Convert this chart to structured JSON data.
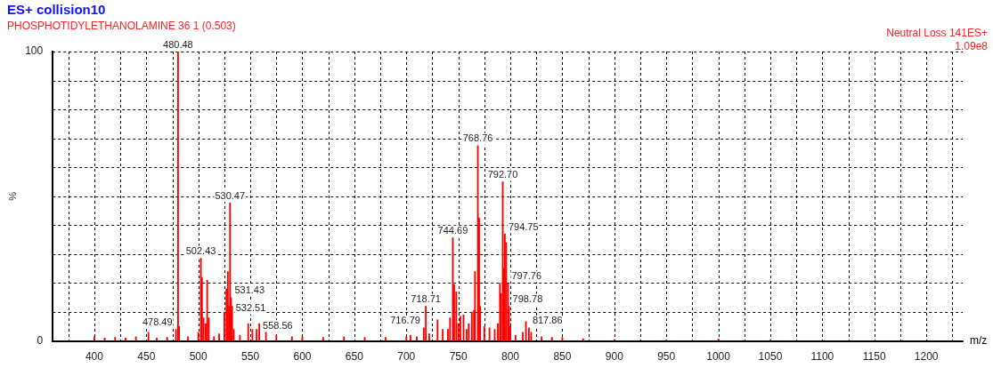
{
  "chart_data": {
    "type": "bar",
    "title": "ES+ collision10",
    "subtitle": "PHOSPHOTIDYLETHANOLAMINE 36 1 (0.503)",
    "xlabel": "m/z",
    "ylabel": "%",
    "annotations": [
      "Neutral Loss 141ES+",
      "1.09e8",
      {
        "text": "480.48",
        "x": 480.48,
        "y": 100
      },
      {
        "text": "478.49",
        "x": 478.49,
        "y": 4
      },
      {
        "text": "502.43",
        "x": 502.43,
        "y": 28.6
      },
      {
        "text": "530.47",
        "x": 530.47,
        "y": 47.7
      },
      {
        "text": "531.43",
        "x": 531.43,
        "y": 15
      },
      {
        "text": "532.51",
        "x": 532.51,
        "y": 12
      },
      {
        "text": "558.56",
        "x": 558.56,
        "y": 6
      },
      {
        "text": "716.79",
        "x": 716.79,
        "y": 4.5
      },
      {
        "text": "718.71",
        "x": 718.71,
        "y": 12
      },
      {
        "text": "744.69",
        "x": 744.69,
        "y": 35.6
      },
      {
        "text": "768.76",
        "x": 768.76,
        "y": 67.5
      },
      {
        "text": "792.70",
        "x": 792.7,
        "y": 55
      },
      {
        "text": "794.75",
        "x": 794.75,
        "y": 37
      },
      {
        "text": "797.76",
        "x": 797.76,
        "y": 20
      },
      {
        "text": "798.78",
        "x": 798.78,
        "y": 12
      },
      {
        "text": "817.86",
        "x": 817.86,
        "y": 4.5
      }
    ],
    "series": [
      {
        "color": "#ff0000",
        "x": [
          400,
          410,
          420,
          430,
          440,
          452,
          460,
          470,
          478.49,
          480.48,
          481.5,
          490,
          500,
          502.43,
          503.5,
          505,
          507,
          508.5,
          510,
          515,
          520,
          525,
          527,
          528.4,
          529.5,
          530.47,
          531.43,
          532.51,
          534,
          540,
          548,
          552,
          556,
          558.56,
          565,
          575,
          590,
          600,
          620,
          640,
          660,
          680,
          700,
          704,
          710,
          716.79,
          718.71,
          722,
          730,
          735,
          740,
          742,
          744.69,
          746,
          748,
          750,
          752,
          755,
          758,
          760,
          763,
          765,
          766,
          768.76,
          770,
          771,
          775,
          780,
          785,
          788,
          790,
          791,
          792.7,
          793.7,
          794.75,
          796,
          797.76,
          798.78,
          800,
          805,
          812,
          815,
          817.86,
          820,
          830,
          840,
          850,
          870,
          900,
          950,
          1000,
          1050
        ],
        "values": [
          1.5,
          1,
          1.2,
          1,
          1.5,
          3,
          1,
          1.2,
          4,
          100,
          5,
          1.5,
          3,
          28.6,
          22,
          8,
          6,
          21,
          8,
          1.5,
          2.5,
          10,
          18,
          24,
          12,
          47.7,
          15,
          12,
          4,
          2,
          6,
          4,
          4,
          6,
          3,
          2,
          1.5,
          1.5,
          1.2,
          1.5,
          1.2,
          1.2,
          1.5,
          2,
          1.5,
          4.5,
          12,
          2.5,
          7.3,
          4,
          4,
          8,
          35.6,
          19.5,
          17,
          6,
          8.5,
          9,
          4,
          6,
          10,
          10.6,
          24,
          67.5,
          42.5,
          12,
          5,
          4.5,
          4,
          6,
          20,
          16.4,
          55,
          25,
          37,
          34,
          20,
          12,
          5,
          2,
          3,
          6.7,
          4.5,
          3,
          1.5,
          1.2,
          1.2,
          0.8,
          0.5,
          0.4,
          0.6,
          0.3
        ]
      }
    ],
    "xlim": [
      360,
      1235
    ],
    "xticks": [
      {
        "value": 375,
        "label": null
      },
      400,
      {
        "value": 425,
        "label": null
      },
      450,
      {
        "value": 475,
        "label": null
      },
      500,
      {
        "value": 525,
        "label": null
      },
      550,
      {
        "value": 575,
        "label": null
      },
      600,
      {
        "value": 625,
        "label": null
      },
      650,
      {
        "value": 675,
        "label": null
      },
      700,
      {
        "value": 725,
        "label": null
      },
      750,
      {
        "value": 775,
        "label": null
      },
      800,
      {
        "value": 825,
        "label": null
      },
      850,
      {
        "value": 875,
        "label": null
      },
      900,
      {
        "value": 925,
        "label": null
      },
      950,
      {
        "value": 975,
        "label": null
      },
      1000,
      {
        "value": 1025,
        "label": null
      },
      1050,
      {
        "value": 1075,
        "label": null
      },
      1100,
      {
        "value": 1125,
        "label": null
      },
      1150,
      {
        "value": 1175,
        "label": null
      },
      1200,
      {
        "value": 1225,
        "label": null
      }
    ],
    "ylim": [
      0,
      100
    ],
    "yticks": [
      0,
      {
        "value": 10,
        "label": null
      },
      {
        "value": 20,
        "label": null
      },
      {
        "value": 30,
        "label": null
      },
      {
        "value": 40,
        "label": null
      },
      {
        "value": 50,
        "label": null
      },
      {
        "value": 60,
        "label": null
      },
      {
        "value": 70,
        "label": null
      },
      {
        "value": 80,
        "label": null
      },
      {
        "value": 90,
        "label": null
      },
      100
    ],
    "grid": true
  }
}
